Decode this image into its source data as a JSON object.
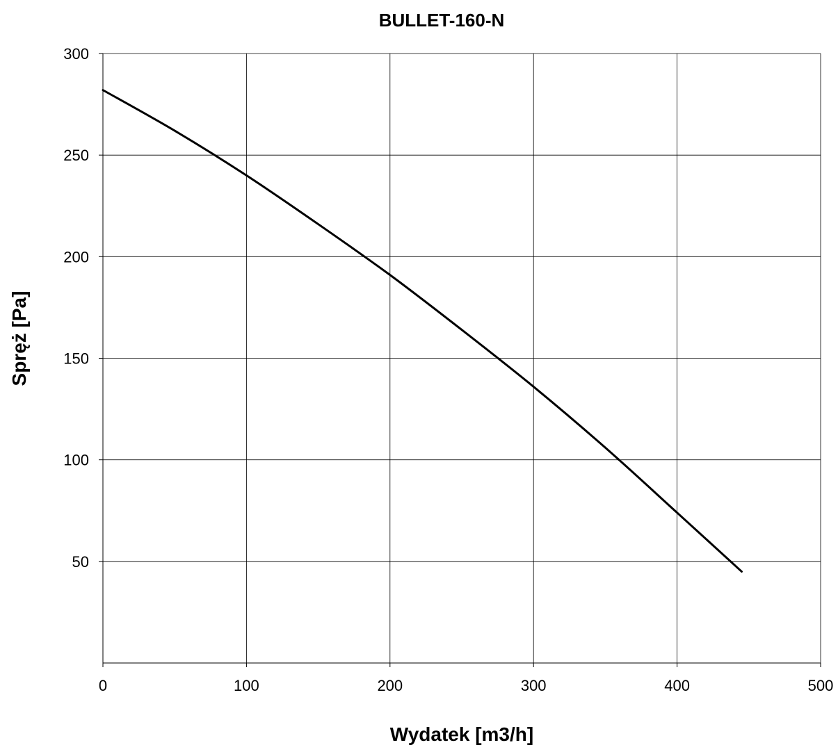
{
  "chart_data": {
    "type": "line",
    "title": "BULLET-160-N",
    "xlabel": "Wydatek [m3/h]",
    "ylabel": "Spręż [Pa]",
    "xlim": [
      0,
      500
    ],
    "ylim": [
      0,
      300
    ],
    "x_ticks": [
      0,
      100,
      200,
      300,
      400,
      500
    ],
    "y_ticks": [
      50,
      100,
      150,
      200,
      250,
      300
    ],
    "grid": true,
    "legend": "none",
    "series": [
      {
        "color": "#000000",
        "x": [
          0,
          50,
          100,
          150,
          200,
          250,
          300,
          350,
          400,
          445
        ],
        "y": [
          282,
          262,
          240,
          216,
          191,
          164,
          136,
          106,
          74,
          45
        ]
      }
    ]
  }
}
